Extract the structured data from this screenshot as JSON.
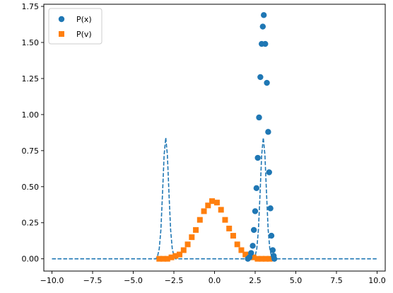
{
  "chart_data": {
    "type": "scatter",
    "title": "",
    "xlabel": "",
    "ylabel": "",
    "xlim": [
      -10.5,
      10.5
    ],
    "ylim": [
      -0.085,
      1.765
    ],
    "xticks": [
      "−10.0",
      "−7.5",
      "−5.0",
      "−2.5",
      "0.0",
      "2.5",
      "5.0",
      "7.5",
      "10.0"
    ],
    "xtick_values": [
      -10,
      -7.5,
      -5,
      -2.5,
      0,
      2.5,
      5,
      7.5,
      10
    ],
    "yticks": [
      "0.00",
      "0.25",
      "0.50",
      "0.75",
      "1.00",
      "1.25",
      "1.50",
      "1.75"
    ],
    "ytick_values": [
      0,
      0.25,
      0.5,
      0.75,
      1.0,
      1.25,
      1.5,
      1.75
    ],
    "grid": false,
    "legend_position": "top-left",
    "series": [
      {
        "name": "P(x)",
        "marker": "circle",
        "color": "#1f77b4",
        "points": [
          [
            2.05,
            0.0
          ],
          [
            2.15,
            0.01
          ],
          [
            2.25,
            0.04
          ],
          [
            2.35,
            0.09
          ],
          [
            2.42,
            0.2
          ],
          [
            2.5,
            0.33
          ],
          [
            2.58,
            0.49
          ],
          [
            2.66,
            0.7
          ],
          [
            2.74,
            0.98
          ],
          [
            2.82,
            1.26
          ],
          [
            2.9,
            1.49
          ],
          [
            2.97,
            1.61
          ],
          [
            3.03,
            1.69
          ],
          [
            3.12,
            1.49
          ],
          [
            3.22,
            1.22
          ],
          [
            3.3,
            0.88
          ],
          [
            3.36,
            0.6
          ],
          [
            3.44,
            0.35
          ],
          [
            3.5,
            0.16
          ],
          [
            3.58,
            0.06
          ],
          [
            3.64,
            0.02
          ],
          [
            3.68,
            0.0
          ]
        ]
      },
      {
        "name": "P(v)",
        "marker": "square",
        "color": "#ff7f0e",
        "points": [
          [
            -3.4,
            0.0
          ],
          [
            -3.15,
            0.0
          ],
          [
            -2.9,
            0.0
          ],
          [
            -2.65,
            0.01
          ],
          [
            -2.4,
            0.02
          ],
          [
            -2.15,
            0.03
          ],
          [
            -1.9,
            0.06
          ],
          [
            -1.65,
            0.1
          ],
          [
            -1.4,
            0.15
          ],
          [
            -1.15,
            0.2
          ],
          [
            -0.9,
            0.27
          ],
          [
            -0.65,
            0.33
          ],
          [
            -0.4,
            0.37
          ],
          [
            -0.15,
            0.4
          ],
          [
            0.15,
            0.39
          ],
          [
            0.4,
            0.34
          ],
          [
            0.65,
            0.27
          ],
          [
            0.9,
            0.21
          ],
          [
            1.15,
            0.16
          ],
          [
            1.4,
            0.1
          ],
          [
            1.65,
            0.06
          ],
          [
            1.9,
            0.03
          ],
          [
            2.15,
            0.02
          ],
          [
            2.4,
            0.01
          ],
          [
            2.65,
            0.0
          ],
          [
            2.9,
            0.0
          ],
          [
            3.15,
            0.0
          ],
          [
            3.4,
            0.0
          ]
        ]
      },
      {
        "name": "",
        "style": "dashed-line",
        "color": "#1f77b4",
        "points": [
          [
            -10,
            0.0
          ],
          [
            -3.6,
            0.0
          ],
          [
            -3.5,
            0.02
          ],
          [
            -3.4,
            0.07
          ],
          [
            -3.3,
            0.2
          ],
          [
            -3.2,
            0.45
          ],
          [
            -3.1,
            0.72
          ],
          [
            -3.0,
            0.84
          ],
          [
            -2.9,
            0.72
          ],
          [
            -2.8,
            0.45
          ],
          [
            -2.7,
            0.2
          ],
          [
            -2.6,
            0.07
          ],
          [
            -2.5,
            0.02
          ],
          [
            -2.4,
            0.0
          ],
          [
            2.4,
            0.0
          ],
          [
            2.5,
            0.02
          ],
          [
            2.6,
            0.07
          ],
          [
            2.7,
            0.2
          ],
          [
            2.8,
            0.45
          ],
          [
            2.9,
            0.72
          ],
          [
            3.0,
            0.84
          ],
          [
            3.1,
            0.72
          ],
          [
            3.2,
            0.45
          ],
          [
            3.3,
            0.2
          ],
          [
            3.4,
            0.07
          ],
          [
            3.5,
            0.02
          ],
          [
            3.6,
            0.0
          ],
          [
            10,
            0.0
          ]
        ]
      }
    ]
  }
}
